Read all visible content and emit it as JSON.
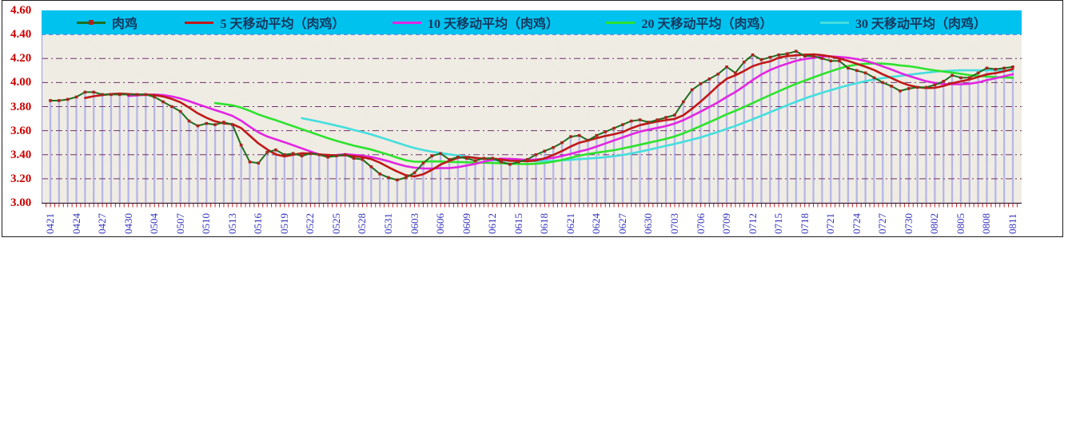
{
  "chart_data": {
    "type": "line",
    "title": "",
    "legend_position": "top",
    "grid": "horizontal-dashed",
    "drop_lines": true,
    "y_axis": {
      "min": 3.0,
      "max": 4.6,
      "step": 0.2,
      "tick_labels": [
        "4.60",
        "4.40",
        "4.20",
        "4.00",
        "3.80",
        "3.60",
        "3.40",
        "3.20",
        "3.00"
      ],
      "label_color": "#cc0000"
    },
    "x_axis": {
      "tick_labels": [
        "0421",
        "0424",
        "0427",
        "0430",
        "0504",
        "0507",
        "0510",
        "0513",
        "0516",
        "0519",
        "0522",
        "0525",
        "0528",
        "0531",
        "0603",
        "0606",
        "0609",
        "0612",
        "0615",
        "0618",
        "0621",
        "0624",
        "0627",
        "0630",
        "0703",
        "0706",
        "0709",
        "0712",
        "0715",
        "0718",
        "0721",
        "0724",
        "0727",
        "0730",
        "0802",
        "0805",
        "0808",
        "0811"
      ],
      "label_every": 3,
      "points_per_label_gap": 3,
      "label_color": "#3333bb",
      "tick_color": "#cc2222"
    },
    "series": [
      {
        "name": "肉鸡",
        "type": "line_with_markers",
        "color": "#1e6e1e",
        "marker_color": "#b02020",
        "values": [
          3.85,
          3.85,
          3.86,
          3.88,
          3.92,
          3.92,
          3.9,
          3.9,
          3.9,
          3.9,
          3.9,
          3.9,
          3.88,
          3.84,
          3.8,
          3.76,
          3.68,
          3.64,
          3.66,
          3.65,
          3.67,
          3.65,
          3.48,
          3.34,
          3.33,
          3.42,
          3.44,
          3.4,
          3.41,
          3.39,
          3.41,
          3.4,
          3.38,
          3.39,
          3.4,
          3.37,
          3.36,
          3.3,
          3.24,
          3.21,
          3.19,
          3.21,
          3.25,
          3.33,
          3.39,
          3.41,
          3.36,
          3.38,
          3.37,
          3.35,
          3.37,
          3.37,
          3.34,
          3.32,
          3.34,
          3.36,
          3.4,
          3.43,
          3.46,
          3.5,
          3.55,
          3.56,
          3.52,
          3.56,
          3.59,
          3.62,
          3.65,
          3.68,
          3.69,
          3.67,
          3.69,
          3.71,
          3.73,
          3.84,
          3.94,
          3.99,
          4.03,
          4.07,
          4.13,
          4.08,
          4.17,
          4.23,
          4.19,
          4.21,
          4.23,
          4.24,
          4.26,
          4.22,
          4.22,
          4.2,
          4.18,
          4.18,
          4.12,
          4.1,
          4.08,
          4.04,
          4.0,
          3.97,
          3.93,
          3.95,
          3.96,
          3.96,
          3.98,
          4.01,
          4.06,
          4.04,
          4.04,
          4.08,
          4.12,
          4.11,
          4.12,
          4.13
        ]
      },
      {
        "name": "5 天移动平均（肉鸡）",
        "type": "line",
        "color": "#c01818",
        "derived": "moving_average",
        "window": 5
      },
      {
        "name": "10 天移动平均（肉鸡）",
        "type": "line",
        "color": "#e226e2",
        "derived": "moving_average",
        "window": 10
      },
      {
        "name": "20 天移动平均（肉鸡）",
        "type": "line",
        "color": "#2ee22e",
        "derived": "moving_average",
        "window": 20
      },
      {
        "name": "30 天移动平均（肉鸡）",
        "type": "line",
        "color": "#45dede",
        "derived": "moving_average",
        "window": 30
      }
    ],
    "colors": {
      "legend_background": "#00c2ef",
      "legend_text": "#17375d",
      "drop_line": "#b6b6e8",
      "gridline_blue": "#3344cc",
      "gridline_purple": "#72306e",
      "axis_line": "#3a1f3a",
      "plot_background": "#f0ede4"
    }
  }
}
